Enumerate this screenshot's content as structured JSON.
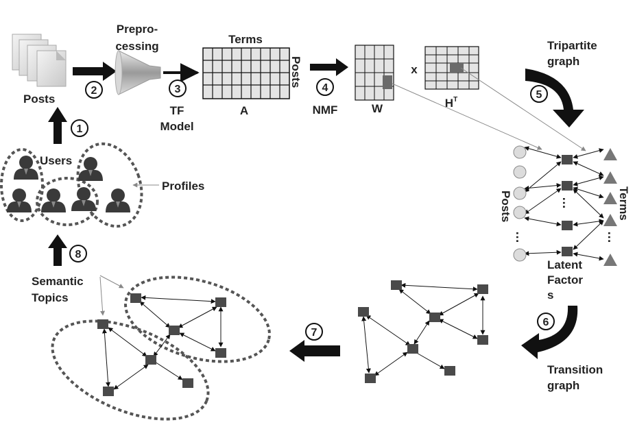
{
  "labels": {
    "posts": "Posts",
    "preprocessing_line1": "Prepro-",
    "preprocessing_line2": "cessing",
    "terms": "Terms",
    "posts_vertical": "Posts",
    "matrix_a": "A",
    "tf_line1": "TF",
    "tf_line2": "Model",
    "nmf": "NMF",
    "matrix_w": "W",
    "times": "x",
    "matrix_h": "H",
    "matrix_h_sup": "T",
    "tripartite_line1": "Tripartite",
    "tripartite_line2": "graph",
    "graph_posts": "Posts",
    "graph_terms": "Terms",
    "latent_line1": "Latent",
    "latent_line2": "Factor",
    "latent_line3": "s",
    "transition_line1": "Transition",
    "transition_line2": "graph",
    "users": "Users",
    "profiles": "Profiles",
    "semantic_line1": "Semantic",
    "semantic_line2": "Topics",
    "dots": "…"
  },
  "steps": [
    "1",
    "2",
    "3",
    "4",
    "5",
    "6",
    "7",
    "8"
  ],
  "colors": {
    "node_fill": "#4a4a4a",
    "post_node_fill": "#dcdcdc",
    "term_node_fill": "#777777",
    "matrix_fill": "#e4e4e4",
    "highlight_cell": "#6a6a6a",
    "dashed_ellipse": "#555555",
    "arrow": "#111111"
  },
  "icons": [
    "document-stack-icon",
    "funnel-icon",
    "user-avatar-icon"
  ]
}
